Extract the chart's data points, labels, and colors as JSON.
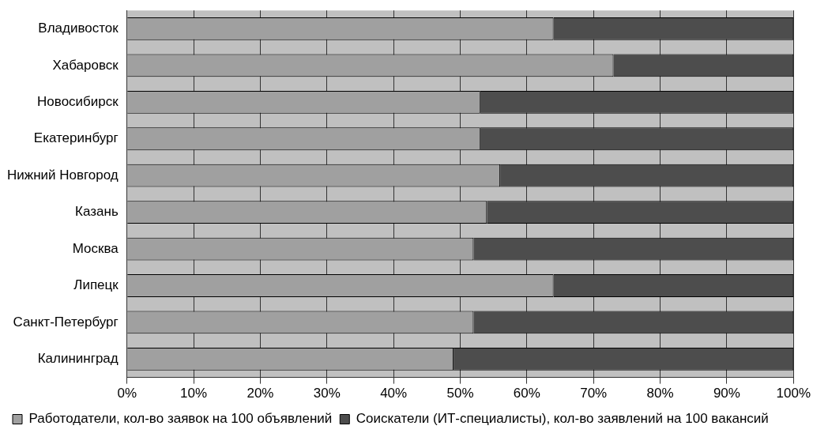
{
  "chart_data": {
    "type": "bar",
    "orientation": "horizontal",
    "stacked": true,
    "categories": [
      "Владивосток",
      "Хабаровск",
      "Новосибирск",
      "Екатеринбург",
      "Нижний Новгород",
      "Казань",
      "Москва",
      "Липецк",
      "Санкт-Петербург",
      "Калининград"
    ],
    "series": [
      {
        "name": "Работодатели, кол-во заявок на 100 объявлений",
        "color": "#a0a0a0",
        "values": [
          64,
          73,
          53,
          53,
          56,
          54,
          52,
          64,
          52,
          49
        ]
      },
      {
        "name": "Соискатели (ИТ-специалисты), кол-во заявлений на 100 вакансий",
        "color": "#4d4d4d",
        "values": [
          36,
          27,
          47,
          47,
          44,
          46,
          48,
          36,
          48,
          51
        ]
      }
    ],
    "xlim": [
      0,
      100
    ],
    "xticks": [
      {
        "value": 0,
        "label": "0%"
      },
      {
        "value": 10,
        "label": "10%"
      },
      {
        "value": 20,
        "label": "20%"
      },
      {
        "value": 30,
        "label": "30%"
      },
      {
        "value": 40,
        "label": "40%"
      },
      {
        "value": 50,
        "label": "50%"
      },
      {
        "value": 60,
        "label": "60%"
      },
      {
        "value": 70,
        "label": "70%"
      },
      {
        "value": 80,
        "label": "80%"
      },
      {
        "value": 90,
        "label": "90%"
      },
      {
        "value": 100,
        "label": "100%"
      }
    ],
    "grid": "x",
    "legend": "bottom"
  }
}
